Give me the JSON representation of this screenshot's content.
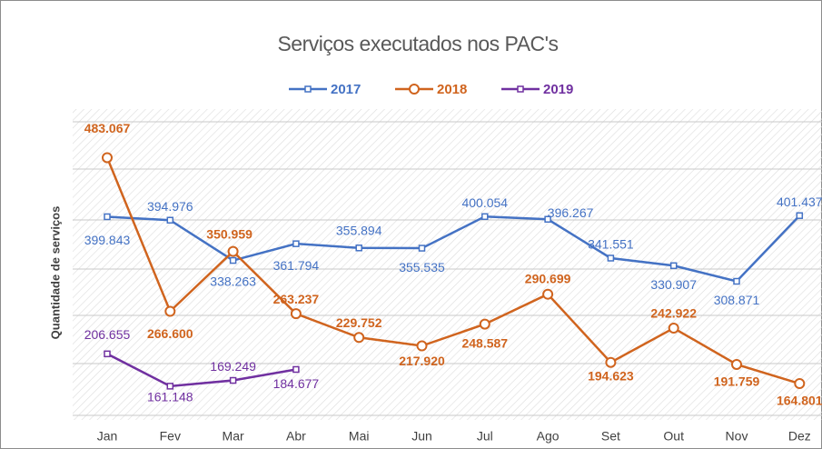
{
  "chart_data": {
    "type": "line",
    "title": "Serviços executados nos PAC's",
    "y_label": "Quantidade de serviços",
    "categories": [
      "Jan",
      "Fev",
      "Mar",
      "Abr",
      "Mai",
      "Jun",
      "Jul",
      "Ago",
      "Set",
      "Out",
      "Nov",
      "Dez"
    ],
    "ylim": [
      120,
      540
    ],
    "series": [
      {
        "name": "2017",
        "color": "#4472c4",
        "marker": "square",
        "values": [
          399.843,
          394.976,
          338.263,
          361.794,
          355.894,
          355.535,
          400.054,
          396.267,
          341.551,
          330.907,
          308.871,
          401.437
        ],
        "value_labels": [
          "399.843",
          "394.976",
          "338.263",
          "361.794",
          "355.894",
          "355.535",
          "400.054",
          "396.267",
          "341.551",
          "330.907",
          "308.871",
          "401.437"
        ]
      },
      {
        "name": "2018",
        "color": "#d0641e",
        "marker": "circle",
        "values": [
          483.067,
          266.6,
          350.959,
          263.237,
          229.752,
          217.92,
          248.587,
          290.699,
          194.623,
          242.922,
          191.759,
          164.801
        ],
        "value_labels": [
          "483.067",
          "266.600",
          "350.959",
          "263.237",
          "229.752",
          "217.920",
          "248.587",
          "290.699",
          "194.623",
          "242.922",
          "191.759",
          "164.801"
        ]
      },
      {
        "name": "2019",
        "color": "#7030a0",
        "marker": "square",
        "values": [
          206.655,
          161.148,
          169.249,
          184.677,
          null,
          null,
          null,
          null,
          null,
          null,
          null,
          null
        ],
        "value_labels": [
          "206.655",
          "161.148",
          "169.249",
          "184.677",
          null,
          null,
          null,
          null,
          null,
          null,
          null,
          null
        ]
      }
    ]
  }
}
